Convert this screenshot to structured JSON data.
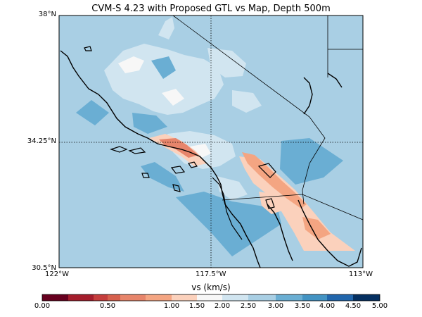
{
  "title": "CVM-S 4.23 with Proposed GTL vs Map, Depth 500m",
  "map": {
    "lat_labels": [
      {
        "label": "38°N",
        "lat": 38.0
      },
      {
        "label": "34.25°N",
        "lat": 34.25
      },
      {
        "label": "30.5°N",
        "lat": 30.5
      }
    ],
    "lon_labels": [
      {
        "label": "122°W",
        "lon": -122.0
      },
      {
        "label": "117.5°W",
        "lon": -117.5
      },
      {
        "label": "113°W",
        "lon": -113.0
      }
    ],
    "extent": {
      "lon_min": -122.0,
      "lon_max": -113.0,
      "lat_min": 30.5,
      "lat_max": 38.0
    },
    "background_color": "#a9cfe4"
  },
  "colorbar": {
    "label": "vs (km/s)",
    "tick_labels": [
      "0.00",
      "0.50",
      "1.00",
      "1.50",
      "2.00",
      "2.50",
      "3.00",
      "3.50",
      "4.00",
      "4.50",
      "5.00"
    ],
    "bins": [
      {
        "color": "#67001f"
      },
      {
        "color": "#a41d2c"
      },
      {
        "color": "#c53e3d"
      },
      {
        "color": "#d6604d"
      },
      {
        "color": "#e7856b"
      },
      {
        "color": "#f4a582"
      },
      {
        "color": "#fbd1bc"
      },
      {
        "color": "#f7f7f7"
      },
      {
        "color": "#d1e5f0"
      },
      {
        "color": "#a9cfe4"
      },
      {
        "color": "#6aaed3"
      },
      {
        "color": "#4393c3"
      },
      {
        "color": "#2166ac"
      },
      {
        "color": "#053061"
      }
    ]
  }
}
